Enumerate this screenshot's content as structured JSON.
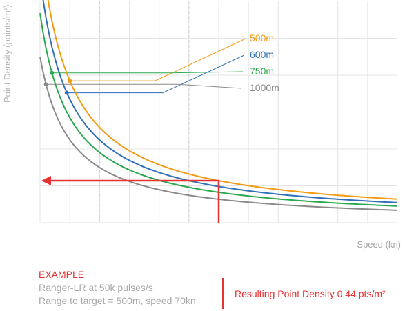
{
  "chart_data": {
    "type": "line",
    "ylabel": "Point Density (points/m²)",
    "xlabel": "Speed (kn)",
    "speed_marker": 70,
    "result_density": 0.44,
    "series": [
      {
        "name": "500m",
        "color": "#f39c12",
        "k": 0.316,
        "c": 0.014,
        "dot_x": 20
      },
      {
        "name": "600m",
        "color": "#2f6fb5",
        "k": 0.276,
        "c": 0.009,
        "dot_x": 19
      },
      {
        "name": "750m",
        "color": "#2aa84f",
        "k": 0.236,
        "c": 0.004,
        "dot_x": 14
      },
      {
        "name": "1000m",
        "color": "#8a8a8a",
        "k": 0.188,
        "c": -0.002,
        "dot_x": 12
      }
    ]
  },
  "example": {
    "title": "EXAMPLE",
    "line1": "Ranger-LR at 50k pulses/s",
    "line2": "Range to target = 500m, speed 70kn",
    "result": "Resulting Point Density 0.44 pts/m²"
  },
  "colors": {
    "highlight": "#e53232",
    "grid": "#d9d9d9",
    "axis_text": "#b3b3b3"
  }
}
